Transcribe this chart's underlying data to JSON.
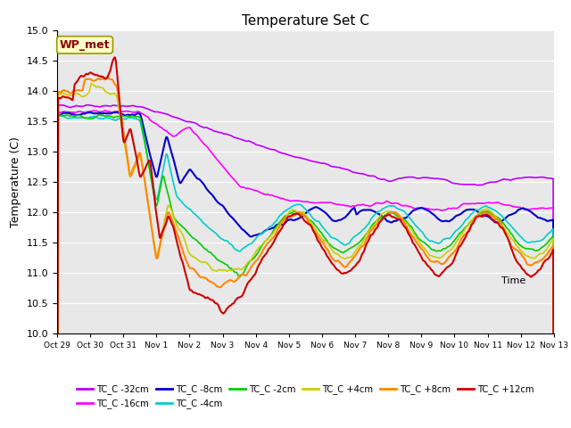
{
  "title": "Temperature Set C",
  "xlabel": "Time",
  "ylabel": "Temperature (C)",
  "ylim": [
    10.0,
    15.0
  ],
  "yticks": [
    10.0,
    10.5,
    11.0,
    11.5,
    12.0,
    12.5,
    13.0,
    13.5,
    14.0,
    14.5,
    15.0
  ],
  "xtick_labels": [
    "Oct 29",
    "Oct 30",
    "Oct 31",
    "Nov 1",
    "Nov 2",
    "Nov 3",
    "Nov 4",
    "Nov 5",
    "Nov 6",
    "Nov 7",
    "Nov 8",
    "Nov 9",
    "Nov 10",
    "Nov 11",
    "Nov 12",
    "Nov 13"
  ],
  "wp_met_label": "WP_met",
  "series_order": [
    "TC_C -32cm",
    "TC_C -16cm",
    "TC_C -8cm",
    "TC_C -4cm",
    "TC_C -2cm",
    "TC_C +4cm",
    "TC_C +8cm",
    "TC_C +12cm"
  ],
  "series": {
    "TC_C -32cm": {
      "color": "#bb00ff",
      "lw": 1.2
    },
    "TC_C -16cm": {
      "color": "#ff00ff",
      "lw": 1.2
    },
    "TC_C -8cm": {
      "color": "#0000cc",
      "lw": 1.5
    },
    "TC_C -4cm": {
      "color": "#00cccc",
      "lw": 1.2
    },
    "TC_C -2cm": {
      "color": "#00cc00",
      "lw": 1.2
    },
    "TC_C +4cm": {
      "color": "#cccc00",
      "lw": 1.2
    },
    "TC_C +8cm": {
      "color": "#ff8800",
      "lw": 1.5
    },
    "TC_C +12cm": {
      "color": "#cc0000",
      "lw": 1.5
    }
  },
  "bg_color": "#e8e8e8",
  "legend_ncol_row1": 6,
  "legend_ncol_row2": 2
}
